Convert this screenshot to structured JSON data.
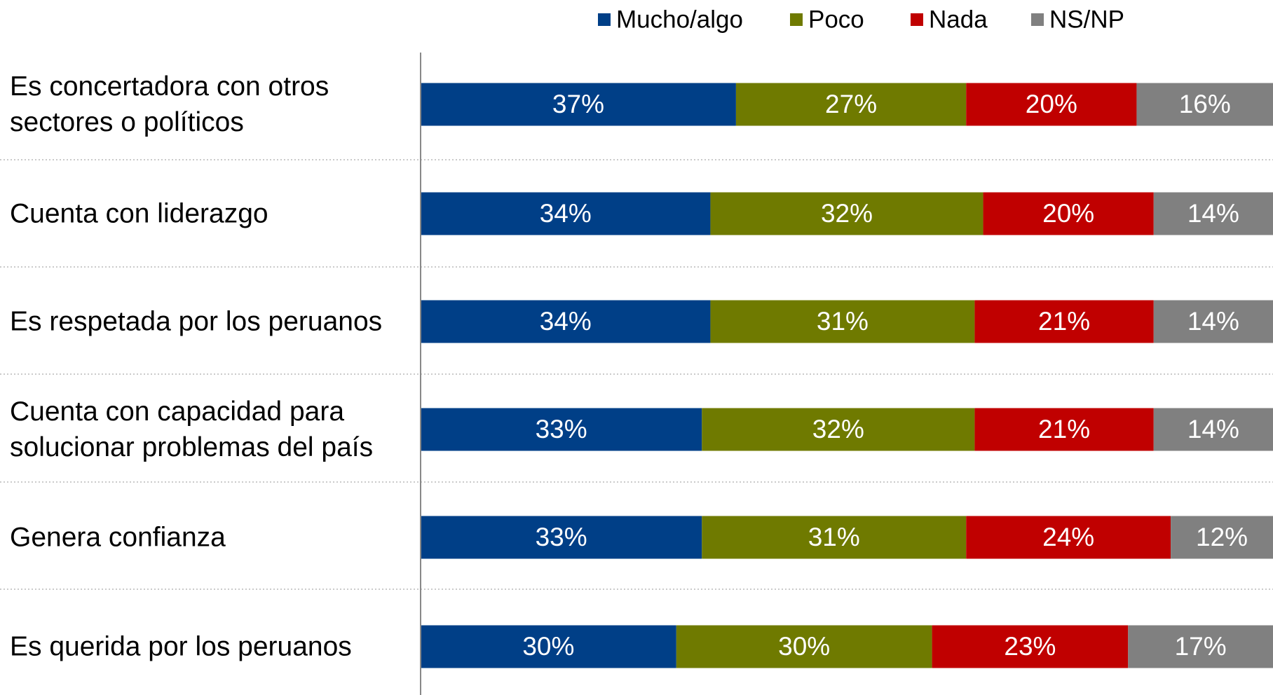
{
  "chart_data": {
    "type": "stacked-bar-horizontal",
    "categories": [
      "Es concertadora con otros sectores o políticos",
      "Cuenta con liderazgo",
      "Es respetada por los peruanos",
      "Cuenta con capacidad para solucionar problemas del país",
      "Genera confianza",
      "Es querida por los peruanos"
    ],
    "series": [
      {
        "name": "Mucho/algo",
        "color": "#003f87",
        "values": [
          37,
          34,
          34,
          33,
          33,
          30
        ],
        "value_labels": [
          "37%",
          "34%",
          "34%",
          "33%",
          "33%",
          "30%"
        ]
      },
      {
        "name": "Poco",
        "color": "#6f7a00",
        "values": [
          27,
          32,
          31,
          32,
          31,
          30
        ],
        "value_labels": [
          "27%",
          "32%",
          "31%",
          "32%",
          "31%",
          "30%"
        ]
      },
      {
        "name": "Nada",
        "color": "#c00000",
        "values": [
          20,
          20,
          21,
          21,
          24,
          23
        ],
        "value_labels": [
          "20%",
          "20%",
          "21%",
          "21%",
          "24%",
          "23%"
        ]
      },
      {
        "name": "NS/NP",
        "color": "#808080",
        "values": [
          16,
          14,
          14,
          14,
          12,
          17
        ],
        "value_labels": [
          "16%",
          "14%",
          "14%",
          "14%",
          "12%",
          "17%"
        ]
      }
    ],
    "xlim": [
      0,
      100
    ],
    "legend": "top"
  }
}
